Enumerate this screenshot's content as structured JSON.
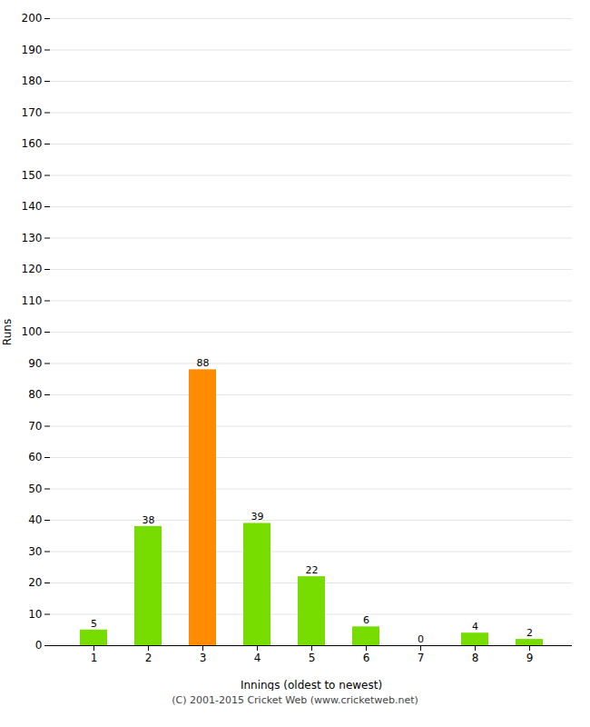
{
  "chart_data": {
    "type": "bar",
    "categories": [
      "1",
      "2",
      "3",
      "4",
      "5",
      "6",
      "7",
      "8",
      "9"
    ],
    "values": [
      5,
      38,
      88,
      39,
      22,
      6,
      0,
      4,
      2
    ],
    "colors": [
      "#77dd00",
      "#77dd00",
      "#ff8c00",
      "#77dd00",
      "#77dd00",
      "#77dd00",
      "#77dd00",
      "#77dd00",
      "#77dd00"
    ],
    "xlabel": "Innings (oldest to newest)",
    "ylabel": "Runs",
    "ylim": [
      0,
      200
    ],
    "yticks": [
      0,
      10,
      20,
      30,
      40,
      50,
      60,
      70,
      80,
      90,
      100,
      110,
      120,
      130,
      140,
      150,
      160,
      170,
      180,
      190,
      200
    ],
    "grid": true,
    "data_labels": true,
    "caption": "(C) 2001-2015 Cricket Web (www.cricketweb.net)"
  }
}
